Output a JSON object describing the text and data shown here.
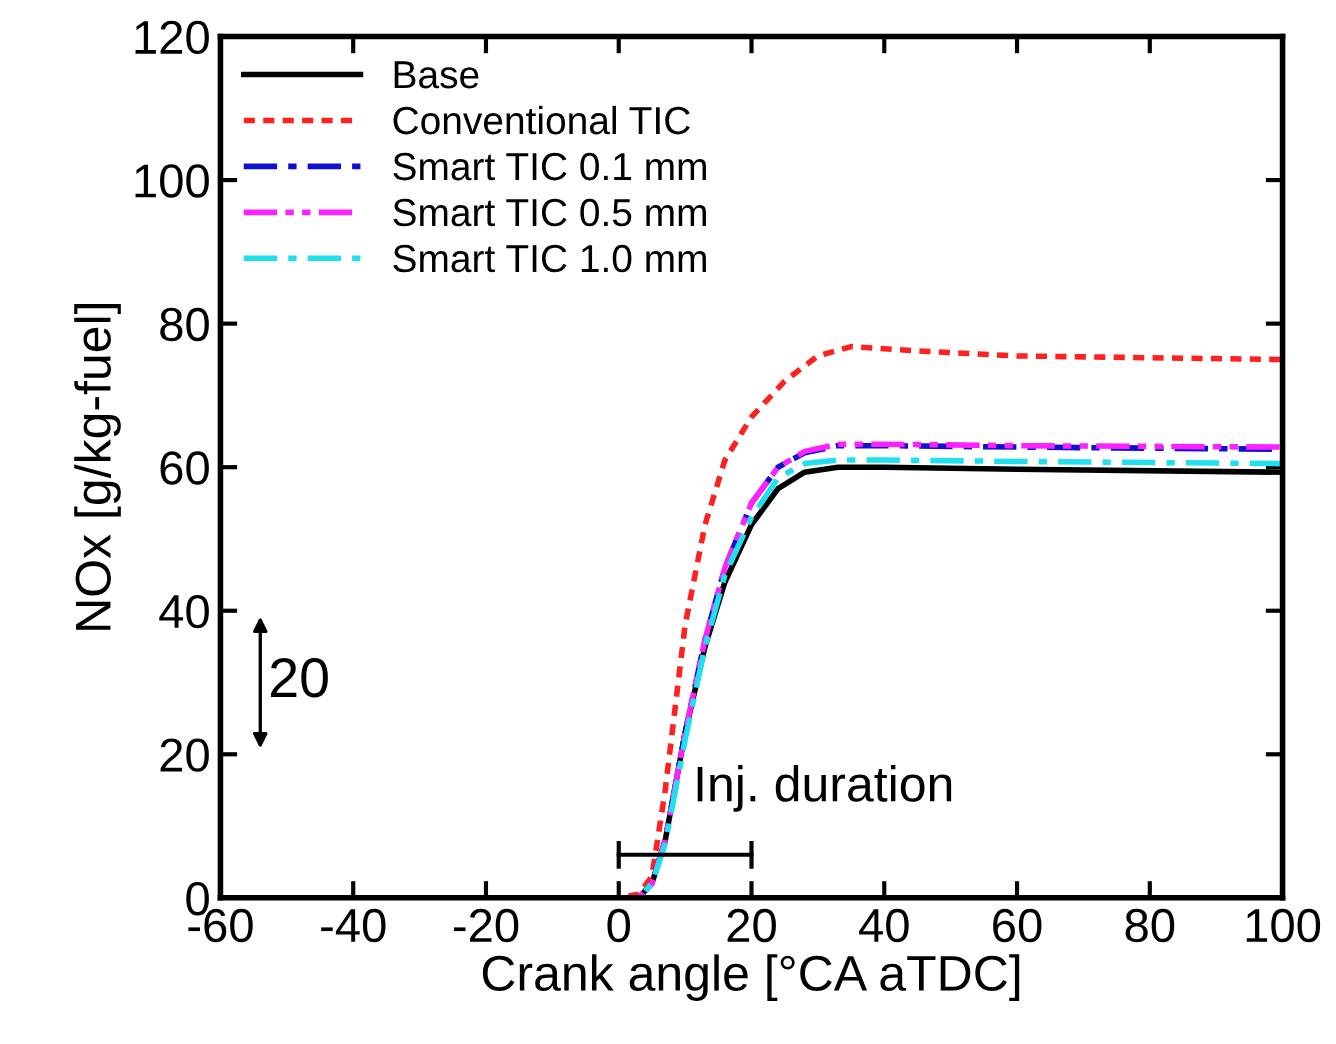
{
  "chart_data": {
    "type": "line",
    "xlabel": "Crank angle [°CA aTDC]",
    "ylabel": "NOx [g/kg-fuel]",
    "xlim": [
      -60,
      100
    ],
    "ylim": [
      0,
      120
    ],
    "xticks": [
      -60,
      -40,
      -20,
      0,
      20,
      40,
      60,
      80,
      100
    ],
    "yticks": [
      0,
      20,
      40,
      60,
      80,
      100,
      120
    ],
    "grid": false,
    "legend": "top left",
    "series": [
      {
        "name": "Base",
        "color": "#000000",
        "line_style": "solid",
        "x": [
          -60,
          0,
          3,
          5,
          7,
          10,
          13,
          16,
          20,
          24,
          28,
          33,
          40,
          60,
          100
        ],
        "values": [
          0,
          0,
          0,
          2,
          8,
          23,
          35,
          44,
          52,
          57,
          59.3,
          60,
          60,
          59.7,
          59.3
        ]
      },
      {
        "name": "Conventional TIC",
        "color": "#ff2020",
        "line_style": "dashed",
        "x": [
          -60,
          0,
          3,
          5,
          7,
          10,
          13,
          16,
          20,
          25,
          30,
          35,
          45,
          60,
          100
        ],
        "values": [
          0,
          0,
          0.5,
          3,
          15,
          38,
          52,
          61,
          67,
          72,
          75.5,
          76.8,
          76.2,
          75.5,
          75
        ]
      },
      {
        "name": "Smart TIC 0.1 mm",
        "color": "#1010d0",
        "line_style": "dashdot",
        "x": [
          -60,
          0,
          3,
          5,
          7,
          10,
          13,
          16,
          20,
          24,
          28,
          33,
          40,
          60,
          100
        ],
        "values": [
          0,
          0,
          0,
          2,
          8,
          23,
          36,
          46,
          55,
          60,
          62,
          63,
          63,
          62.8,
          62.5
        ]
      },
      {
        "name": "Smart TIC 0.5 mm",
        "color": "#ff20ff",
        "line_style": "dashdotdot",
        "x": [
          -60,
          0,
          3,
          5,
          7,
          10,
          13,
          16,
          20,
          24,
          28,
          33,
          40,
          60,
          100
        ],
        "values": [
          0,
          0,
          0,
          2,
          8,
          23,
          36,
          46,
          55,
          60,
          62.2,
          63.2,
          63.2,
          63,
          62.8
        ]
      },
      {
        "name": "Smart TIC 1.0 mm",
        "color": "#20e0f0",
        "line_style": "dashdot",
        "x": [
          -60,
          0,
          3,
          5,
          7,
          10,
          13,
          16,
          20,
          24,
          28,
          33,
          40,
          60,
          100
        ],
        "values": [
          0,
          0,
          0,
          2,
          7.5,
          22,
          35,
          45,
          53,
          58.5,
          60.5,
          61,
          61,
          60.8,
          60.5
        ]
      }
    ],
    "annotations": [
      "20",
      "Inj. duration"
    ]
  }
}
